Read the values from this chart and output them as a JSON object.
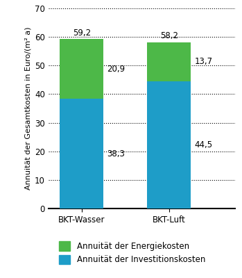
{
  "categories": [
    "BKT-Wasser",
    "BKT-Luft"
  ],
  "investment_values": [
    38.3,
    44.5
  ],
  "energy_values": [
    20.9,
    13.7
  ],
  "total_labels": [
    "59,2",
    "58,2"
  ],
  "investment_labels": [
    "38,3",
    "44,5"
  ],
  "energy_labels": [
    "20,9",
    "13,7"
  ],
  "bar_color_investment": "#1e9dc8",
  "bar_color_energy": "#4db848",
  "bar_width": 0.5,
  "ylim": [
    0,
    70
  ],
  "yticks": [
    0,
    10,
    20,
    30,
    40,
    50,
    60,
    70
  ],
  "ylabel": "Annuität der Gesamtkosten in Euro/(m² a)",
  "legend_energy": "Annuität der Energiekosten",
  "legend_investment": "Annuität der Investitionskosten",
  "label_fontsize": 8.5,
  "tick_fontsize": 8.5,
  "ylabel_fontsize": 8
}
